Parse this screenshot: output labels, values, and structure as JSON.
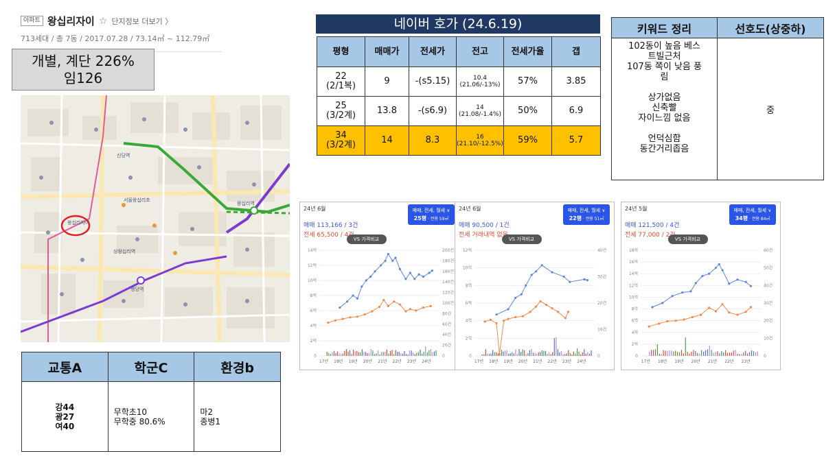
{
  "apartment": {
    "badge": "아파트",
    "name": "왕십리자이",
    "star": "☆",
    "more_link": "단지정보 더보기 〉",
    "summary": "713세대 / 총 7동 / 2017.07.28 / 73.14㎡ ~ 112.79㎡"
  },
  "ratio_box": {
    "line1": "개별, 계단 226%",
    "line2": "임126"
  },
  "map": {
    "labels": [
      "왕십리자이",
      "서울왕십리초",
      "상왕십리역",
      "행당역",
      "신당역",
      "왕십리역"
    ],
    "highlight_color": "#e02020"
  },
  "score_table": {
    "headers": [
      "교통A",
      "학군C",
      "환경b"
    ],
    "transport": [
      "강44",
      "광27",
      "여40"
    ],
    "school": [
      "무학초10",
      "무학중 80.6%"
    ],
    "environment": [
      "마2",
      "종병1"
    ]
  },
  "naver": {
    "title": "네이버 호가 (24.6.19)",
    "headers": [
      "평형",
      "매매가",
      "전세가",
      "전고",
      "전세가율",
      "갭"
    ],
    "rows": [
      {
        "size": "22",
        "size_sub": "(2/1복)",
        "sale": "9",
        "jeonse": "-(s5.15)",
        "prev_high": "10.4",
        "prev_high_sub": "(21.06/-13%)",
        "ratio": "57%",
        "gap": "3.85",
        "highlight": false
      },
      {
        "size": "25",
        "size_sub": "(3/2계)",
        "sale": "13.8",
        "jeonse": "-(s6.9)",
        "prev_high": "14",
        "prev_high_sub": "(21.08/-1.4%)",
        "ratio": "50%",
        "gap": "6.9",
        "highlight": false
      },
      {
        "size": "34",
        "size_sub": "(3/2계)",
        "sale": "14",
        "jeonse": "8.3",
        "prev_high": "16",
        "prev_high_sub": "(21.10/-12.5%)",
        "ratio": "59%",
        "gap": "5.7",
        "highlight": true
      }
    ]
  },
  "keywords": {
    "headers": [
      "키워드 정리",
      "선호도(상중하)"
    ],
    "lines": [
      "102동이 높음 베스",
      "트빌근처",
      "107동 쪽이 낮음 풍",
      "림",
      "",
      "상가없음",
      "신축빨",
      "자이느낌 없음",
      "",
      "언덕심함",
      "동간거리좁음"
    ],
    "preference": "중"
  },
  "charts": [
    {
      "month": "24년 6월",
      "sale_line": "매매 113,166 / 3건",
      "rent_line": "전세 65,500 / 4건",
      "selector": "매매, 전세, 월세 ∨",
      "size_label": "25평",
      "size_sub": "· 전용 59㎡",
      "vs_label": "VS 가격비교",
      "y_left": [
        "14억",
        "12억",
        "10억",
        "8억",
        "6억",
        "4억",
        "2억",
        "0"
      ],
      "y_right": [
        "200건",
        "180건",
        "160건",
        "140건",
        "120건",
        "100건",
        "80건",
        "60건",
        "40건",
        "20건",
        "0"
      ],
      "x_ticks": [
        "17년",
        "18년",
        "19년",
        "20년",
        "21년",
        "22년",
        "23년",
        "24년"
      ],
      "sale": [
        [
          2018.1,
          6.4
        ],
        [
          2018.6,
          7.2
        ],
        [
          2019.0,
          8.0
        ],
        [
          2019.3,
          7.6
        ],
        [
          2019.6,
          9.2
        ],
        [
          2019.9,
          10.0
        ],
        [
          2020.2,
          10.5
        ],
        [
          2020.5,
          11.2
        ],
        [
          2020.9,
          12.0
        ],
        [
          2021.2,
          12.6
        ],
        [
          2021.4,
          13.5
        ],
        [
          2021.7,
          12.6
        ],
        [
          2021.9,
          13.0
        ],
        [
          2022.2,
          11.5
        ],
        [
          2022.6,
          10.2
        ],
        [
          2022.9,
          11.0
        ],
        [
          2023.2,
          10.2
        ],
        [
          2023.5,
          10.8
        ],
        [
          2023.8,
          10.5
        ],
        [
          2024.2,
          11.0
        ],
        [
          2024.4,
          11.3
        ]
      ],
      "rent": [
        [
          2017.3,
          4.4
        ],
        [
          2017.8,
          4.7
        ],
        [
          2018.3,
          4.9
        ],
        [
          2018.8,
          5.1
        ],
        [
          2019.3,
          5.2
        ],
        [
          2019.8,
          5.5
        ],
        [
          2020.3,
          5.9
        ],
        [
          2020.8,
          6.5
        ],
        [
          2021.1,
          7.4
        ],
        [
          2021.4,
          6.6
        ],
        [
          2021.8,
          7.2
        ],
        [
          2022.2,
          6.8
        ],
        [
          2022.6,
          5.9
        ],
        [
          2022.9,
          6.2
        ],
        [
          2023.3,
          6.0
        ],
        [
          2023.8,
          6.4
        ],
        [
          2024.3,
          6.6
        ]
      ],
      "y_max": 14
    },
    {
      "month": "24년 6월",
      "sale_line": "매매 90,500 / 1건",
      "rent_line": "전세 거래내역 없음",
      "selector": "매매, 전세, 월세 ∨",
      "size_label": "22평",
      "size_sub": "· 전용 51㎡",
      "vs_label": "VS 가격비교",
      "y_left": [
        "12억",
        "10억",
        "8억",
        "6억",
        "4억",
        "2억",
        "0"
      ],
      "y_right": [
        "40건",
        "30건",
        "20건",
        "10건",
        "0"
      ],
      "x_ticks": [
        "17년",
        "18년",
        "19년",
        "20년",
        "21년",
        "22년",
        "23년",
        "24년"
      ],
      "sale": [
        [
          2018.2,
          4.7
        ],
        [
          2019.0,
          5.3
        ],
        [
          2019.5,
          6.6
        ],
        [
          2019.9,
          7.0
        ],
        [
          2020.2,
          8.0
        ],
        [
          2020.6,
          9.2
        ],
        [
          2020.9,
          9.6
        ],
        [
          2021.3,
          10.3
        ],
        [
          2022.0,
          9.5
        ],
        [
          2022.8,
          9.0
        ],
        [
          2023.2,
          8.4
        ],
        [
          2024.2,
          8.7
        ],
        [
          2024.4,
          8.6
        ]
      ],
      "rent": [
        [
          2017.4,
          3.9
        ],
        [
          2017.8,
          4.1
        ],
        [
          2018.2,
          3.7
        ],
        [
          2018.4,
          0.2
        ],
        [
          2018.7,
          4.0
        ],
        [
          2019.0,
          4.2
        ],
        [
          2019.5,
          4.4
        ],
        [
          2020.0,
          4.5
        ],
        [
          2020.5,
          5.0
        ],
        [
          2020.9,
          5.6
        ],
        [
          2021.2,
          6.2
        ],
        [
          2021.6,
          5.8
        ],
        [
          2022.0,
          5.4
        ],
        [
          2022.4,
          5.0
        ],
        [
          2022.9,
          4.3
        ],
        [
          2023.1,
          5.0
        ]
      ],
      "y_max": 12
    },
    {
      "month": "24년 5월",
      "sale_line": "매매 121,500 / 4건",
      "rent_line": "전세 77,000 / 2건",
      "selector": "매매, 전세, 월세 ∨",
      "size_label": "34평",
      "size_sub": "· 전용 84㎡",
      "vs_label": "VS 가격비교",
      "y_left": [
        "18억",
        "16억",
        "14억",
        "12억",
        "10억",
        "8억",
        "6억",
        "4억",
        "2억",
        "0"
      ],
      "y_right": [
        "60건",
        "50건",
        "40건",
        "30건",
        "20건",
        "10건",
        "0"
      ],
      "x_ticks": [
        "17년",
        "18년",
        "19년",
        "20년",
        "21년",
        "22년",
        "23년"
      ],
      "sale": [
        [
          2017.4,
          8.3
        ],
        [
          2018.0,
          9.0
        ],
        [
          2018.6,
          10.2
        ],
        [
          2019.2,
          10.8
        ],
        [
          2019.7,
          11.0
        ],
        [
          2020.0,
          12.4
        ],
        [
          2020.4,
          13.6
        ],
        [
          2020.8,
          14.0
        ],
        [
          2021.2,
          15.0
        ],
        [
          2021.4,
          15.6
        ],
        [
          2021.6,
          14.6
        ],
        [
          2022.0,
          12.3
        ],
        [
          2022.5,
          13.0
        ],
        [
          2023.0,
          12.6
        ],
        [
          2023.3,
          11.9
        ]
      ],
      "rent": [
        [
          2017.2,
          5.0
        ],
        [
          2017.8,
          5.5
        ],
        [
          2018.3,
          5.9
        ],
        [
          2018.8,
          6.0
        ],
        [
          2019.3,
          6.2
        ],
        [
          2019.8,
          6.6
        ],
        [
          2020.3,
          7.0
        ],
        [
          2020.8,
          8.2
        ],
        [
          2021.2,
          7.6
        ],
        [
          2021.6,
          8.8
        ],
        [
          2022.0,
          7.4
        ],
        [
          2022.5,
          7.0
        ],
        [
          2023.0,
          7.5
        ],
        [
          2023.3,
          8.3
        ]
      ],
      "y_max": 18
    }
  ]
}
